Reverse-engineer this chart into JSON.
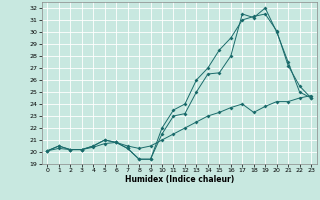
{
  "xlabel": "Humidex (Indice chaleur)",
  "xlim": [
    -0.5,
    23.5
  ],
  "ylim": [
    19,
    32.5
  ],
  "yticks": [
    19,
    20,
    21,
    22,
    23,
    24,
    25,
    26,
    27,
    28,
    29,
    30,
    31,
    32
  ],
  "xticks": [
    0,
    1,
    2,
    3,
    4,
    5,
    6,
    7,
    8,
    9,
    10,
    11,
    12,
    13,
    14,
    15,
    16,
    17,
    18,
    19,
    20,
    21,
    22,
    23
  ],
  "bg_color": "#c8e8e0",
  "line_color": "#1a6b6b",
  "grid_color": "#ffffff",
  "line1_x": [
    0,
    1,
    2,
    3,
    4,
    5,
    6,
    7,
    8,
    9,
    10,
    11,
    12,
    13,
    14,
    15,
    16,
    17,
    18,
    19,
    20,
    21,
    22,
    23
  ],
  "line1_y": [
    20.1,
    20.5,
    20.2,
    20.2,
    20.5,
    21.0,
    20.8,
    20.3,
    19.4,
    19.4,
    21.5,
    23.0,
    23.2,
    25.0,
    26.5,
    26.6,
    28.0,
    31.5,
    31.2,
    32.0,
    30.0,
    27.5,
    25.0,
    24.5
  ],
  "line2_x": [
    0,
    1,
    2,
    3,
    4,
    5,
    6,
    7,
    8,
    9,
    10,
    11,
    12,
    13,
    14,
    15,
    16,
    17,
    18,
    19,
    20,
    21,
    22,
    23
  ],
  "line2_y": [
    20.1,
    20.5,
    20.2,
    20.2,
    20.5,
    21.0,
    20.8,
    20.3,
    19.4,
    19.4,
    22.0,
    23.5,
    24.0,
    26.0,
    27.0,
    28.5,
    29.5,
    31.0,
    31.3,
    31.5,
    30.1,
    27.2,
    25.5,
    24.5
  ],
  "line3_x": [
    0,
    1,
    2,
    3,
    4,
    5,
    6,
    7,
    8,
    9,
    10,
    11,
    12,
    13,
    14,
    15,
    16,
    17,
    18,
    19,
    20,
    21,
    22,
    23
  ],
  "line3_y": [
    20.1,
    20.3,
    20.2,
    20.2,
    20.4,
    20.7,
    20.8,
    20.5,
    20.3,
    20.5,
    21.0,
    21.5,
    22.0,
    22.5,
    23.0,
    23.3,
    23.7,
    24.0,
    23.3,
    23.8,
    24.2,
    24.2,
    24.5,
    24.7
  ]
}
